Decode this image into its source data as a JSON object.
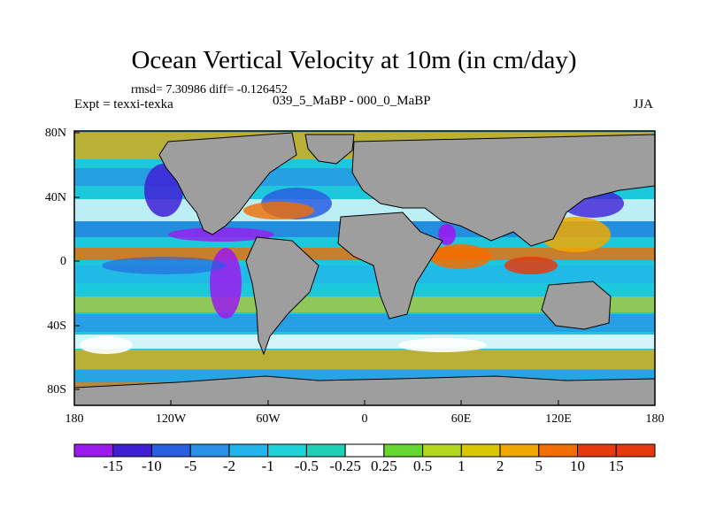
{
  "title": "Ocean Vertical Velocity at 10m (in cm/day)",
  "stats": "rmsd= 7.30986 diff= -0.126452",
  "experiment": "Expt = texxi-texka",
  "comparison": "039_5_MaBP - 000_0_MaBP",
  "season": "JJA",
  "y_ticks": [
    "80N",
    "40N",
    "0",
    "40S",
    "80S"
  ],
  "x_ticks": [
    "180",
    "120W",
    "60W",
    "0",
    "60E",
    "120E",
    "180"
  ],
  "colorbar": {
    "labels": [
      "-15",
      "-10",
      "-5",
      "-2",
      "-1",
      "-0.5",
      "-0.25",
      "0.25",
      "0.5",
      "1",
      "2",
      "5",
      "10",
      "15"
    ],
    "colors": [
      "#9a1aef",
      "#3f1fd6",
      "#2a5ee0",
      "#2a8fe6",
      "#22b4ea",
      "#1cd2d8",
      "#1ed1b6",
      "#ffffff",
      "#66d630",
      "#b2d81e",
      "#d9c800",
      "#f0a800",
      "#f36d00",
      "#e8380d"
    ]
  },
  "colors": {
    "land": "#9e9e9e",
    "frame": "#000000"
  }
}
